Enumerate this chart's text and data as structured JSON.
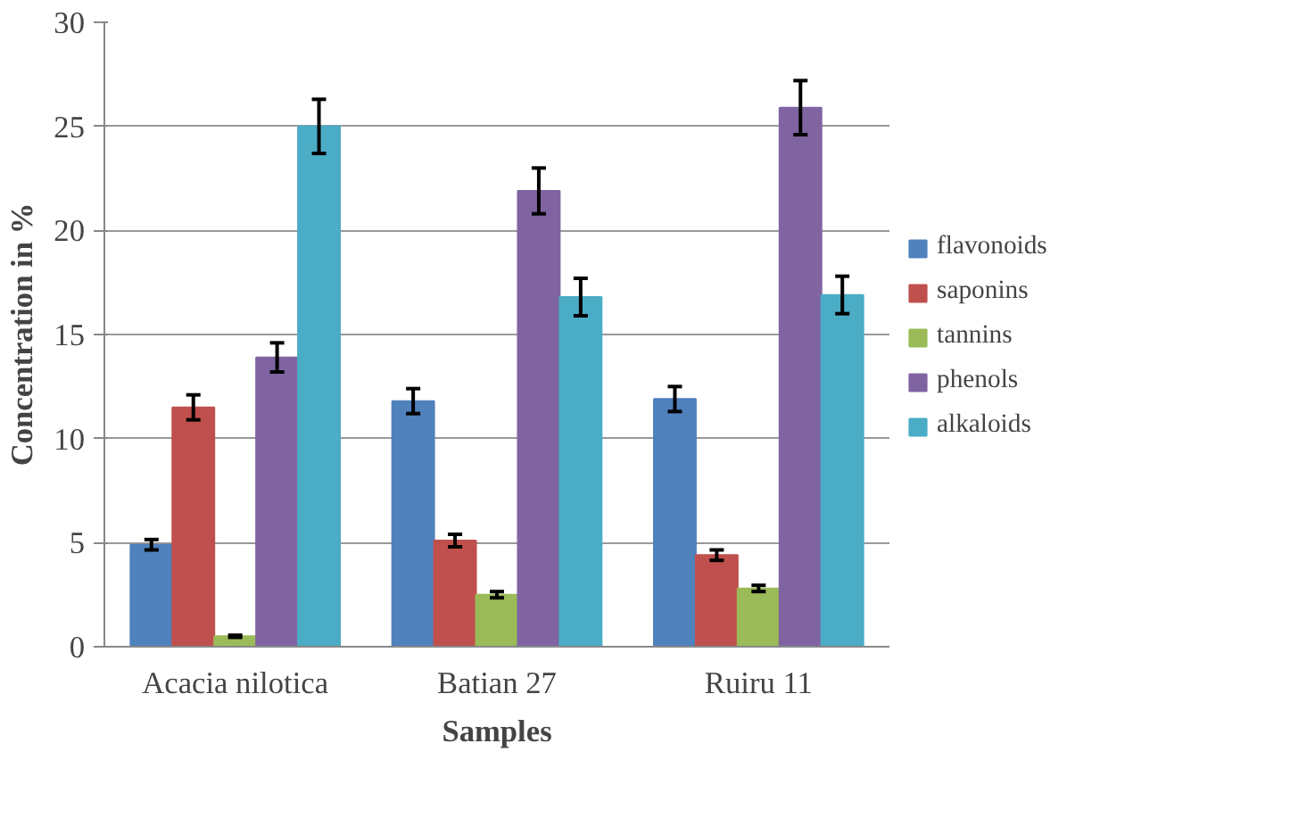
{
  "chart_data": {
    "type": "bar",
    "xlabel": "Samples",
    "ylabel": "Concentration in %",
    "categories": [
      "Acacia nilotica",
      "Batian 27",
      "Ruiru 11"
    ],
    "series": [
      {
        "name": "flavonoids",
        "color": "#4f81bd",
        "values": [
          4.9,
          11.8,
          11.9
        ],
        "errors": [
          0.25,
          0.6,
          0.6
        ]
      },
      {
        "name": "saponins",
        "color": "#c0504d",
        "values": [
          11.5,
          5.1,
          4.4
        ],
        "errors": [
          0.6,
          0.3,
          0.25
        ]
      },
      {
        "name": "tannins",
        "color": "#9bbb59",
        "values": [
          0.5,
          2.5,
          2.8
        ],
        "errors": [
          0.05,
          0.15,
          0.15
        ]
      },
      {
        "name": "phenols",
        "color": "#8064a2",
        "values": [
          13.9,
          21.9,
          25.9
        ],
        "errors": [
          0.7,
          1.1,
          1.3
        ]
      },
      {
        "name": "alkaloids",
        "color": "#4bacc6",
        "values": [
          25,
          16.8,
          16.9
        ],
        "errors": [
          1.3,
          0.9,
          0.9
        ]
      }
    ],
    "ylim": [
      0,
      30
    ],
    "yticks": [
      0,
      5,
      10,
      15,
      20,
      25,
      30
    ],
    "grid": "y",
    "legend": "right"
  }
}
